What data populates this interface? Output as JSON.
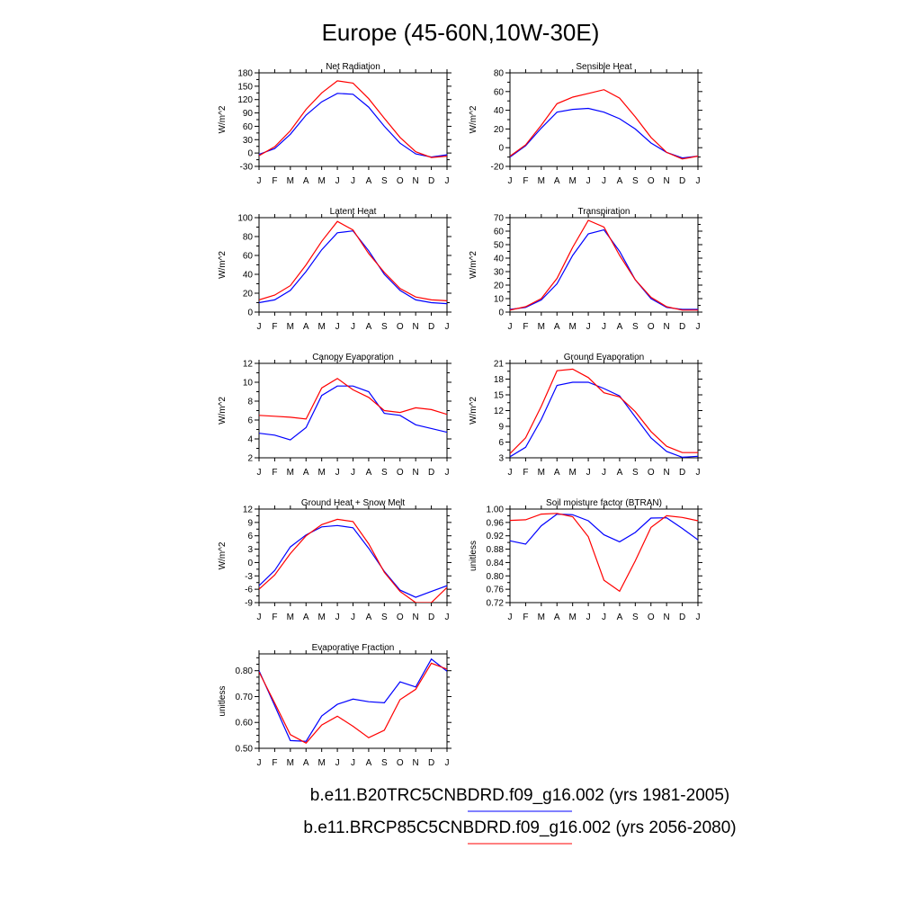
{
  "title": "Europe (45-60N,10W-30E)",
  "series_colors": [
    "#0000ff",
    "#ff0000"
  ],
  "legend": [
    {
      "label": "b.e11.B20TRC5CNBDRD.f09_g16.002 (yrs 1981-2005)",
      "color": "#0000ff"
    },
    {
      "label": "b.e11.BRCP85C5CNBDRD.f09_g16.002 (yrs 2056-2080)",
      "color": "#ff0000"
    }
  ],
  "chart_data": [
    {
      "type": "line",
      "title": "Net Radiation",
      "ylabel": "W/m^2",
      "categories": [
        "J",
        "F",
        "M",
        "A",
        "M",
        "J",
        "J",
        "A",
        "S",
        "O",
        "N",
        "D",
        "J"
      ],
      "ylim": [
        -30,
        180
      ],
      "yticks": [
        -30,
        -15,
        0,
        15,
        30,
        45,
        60,
        75,
        90,
        105,
        120,
        135,
        150,
        165,
        180
      ],
      "yticklabels": [
        "-30",
        "",
        "0",
        "",
        "30",
        "",
        "60",
        "",
        "90",
        "",
        "120",
        "",
        "150",
        "",
        "180"
      ],
      "series": [
        {
          "values": [
            -3,
            10,
            42,
            85,
            115,
            134,
            132,
            103,
            60,
            22,
            -2,
            -9,
            -4
          ]
        },
        {
          "values": [
            -6,
            14,
            50,
            98,
            135,
            162,
            157,
            122,
            78,
            35,
            3,
            -10,
            -7
          ]
        }
      ]
    },
    {
      "type": "line",
      "title": "Sensible Heat",
      "ylabel": "W/m^2",
      "categories": [
        "J",
        "F",
        "M",
        "A",
        "M",
        "J",
        "J",
        "A",
        "S",
        "O",
        "N",
        "D",
        "J"
      ],
      "ylim": [
        -20,
        80
      ],
      "yticks": [
        -20,
        -10,
        0,
        10,
        20,
        30,
        40,
        50,
        60,
        70,
        80
      ],
      "yticklabels": [
        "-20",
        "",
        "0",
        "",
        "20",
        "",
        "40",
        "",
        "60",
        "",
        "80"
      ],
      "series": [
        {
          "values": [
            -10,
            2,
            21,
            38,
            41,
            42,
            38,
            31,
            20,
            5,
            -5,
            -11,
            -9
          ]
        },
        {
          "values": [
            -9,
            3,
            24,
            47,
            54,
            58,
            62,
            53,
            33,
            11,
            -5,
            -12,
            -9
          ]
        }
      ]
    },
    {
      "type": "line",
      "title": "Latent Heat",
      "ylabel": "W/m^2",
      "categories": [
        "J",
        "F",
        "M",
        "A",
        "M",
        "J",
        "J",
        "A",
        "S",
        "O",
        "N",
        "D",
        "J"
      ],
      "ylim": [
        0,
        100
      ],
      "yticks": [
        0,
        10,
        20,
        30,
        40,
        50,
        60,
        70,
        80,
        90,
        100
      ],
      "yticklabels": [
        "0",
        "",
        "20",
        "",
        "40",
        "",
        "60",
        "",
        "80",
        "",
        "100"
      ],
      "series": [
        {
          "values": [
            10,
            13,
            23,
            43,
            66,
            84,
            86,
            65,
            40,
            23,
            13,
            10,
            9
          ]
        },
        {
          "values": [
            13,
            18,
            28,
            50,
            75,
            96,
            87,
            62,
            42,
            25,
            16,
            13,
            12
          ]
        }
      ]
    },
    {
      "type": "line",
      "title": "Transpiration",
      "ylabel": "W/m^2",
      "categories": [
        "J",
        "F",
        "M",
        "A",
        "M",
        "J",
        "J",
        "A",
        "S",
        "O",
        "N",
        "D",
        "J"
      ],
      "ylim": [
        0,
        70
      ],
      "yticks": [
        0,
        5,
        10,
        15,
        20,
        25,
        30,
        35,
        40,
        45,
        50,
        55,
        60,
        65,
        70
      ],
      "yticklabels": [
        "0",
        "",
        "10",
        "",
        "20",
        "",
        "30",
        "",
        "40",
        "",
        "50",
        "",
        "60",
        "",
        "70"
      ],
      "series": [
        {
          "values": [
            2,
            3.5,
            9,
            21,
            42,
            58,
            61,
            45,
            24,
            10,
            3.5,
            2,
            2
          ]
        },
        {
          "values": [
            1.5,
            4,
            10,
            25,
            48,
            68,
            63,
            42,
            24,
            11,
            4,
            1.5,
            1.5
          ]
        }
      ]
    },
    {
      "type": "line",
      "title": "Canopy Evaporation",
      "ylabel": "W/m^2",
      "categories": [
        "J",
        "F",
        "M",
        "A",
        "M",
        "J",
        "J",
        "A",
        "S",
        "O",
        "N",
        "D",
        "J"
      ],
      "ylim": [
        2,
        12
      ],
      "yticks": [
        2,
        3,
        4,
        5,
        6,
        7,
        8,
        9,
        10,
        11,
        12
      ],
      "yticklabels": [
        "2",
        "",
        "4",
        "",
        "6",
        "",
        "8",
        "",
        "10",
        "",
        "12"
      ],
      "series": [
        {
          "values": [
            4.6,
            4.4,
            3.9,
            5.2,
            8.6,
            9.6,
            9.6,
            9.0,
            6.7,
            6.5,
            5.5,
            5.1,
            4.7
          ]
        },
        {
          "values": [
            6.5,
            6.4,
            6.3,
            6.1,
            9.4,
            10.4,
            9.2,
            8.4,
            7.0,
            6.8,
            7.3,
            7.1,
            6.6
          ]
        }
      ]
    },
    {
      "type": "line",
      "title": "Ground Evaporation",
      "ylabel": "W/m^2",
      "categories": [
        "J",
        "F",
        "M",
        "A",
        "M",
        "J",
        "J",
        "A",
        "S",
        "O",
        "N",
        "D",
        "J"
      ],
      "ylim": [
        3,
        21
      ],
      "yticks": [
        3,
        4.5,
        6,
        7.5,
        9,
        10.5,
        12,
        13.5,
        15,
        16.5,
        18,
        19.5,
        21
      ],
      "yticklabels": [
        "3",
        "",
        "6",
        "",
        "9",
        "",
        "12",
        "",
        "15",
        "",
        "18",
        "",
        "21"
      ],
      "series": [
        {
          "values": [
            3.2,
            5.0,
            10.3,
            16.8,
            17.4,
            17.4,
            16.2,
            14.8,
            10.8,
            6.8,
            4.2,
            3.1,
            3.3
          ]
        },
        {
          "values": [
            3.8,
            6.8,
            12.8,
            19.6,
            19.9,
            18.3,
            15.4,
            14.6,
            11.8,
            8.0,
            5.2,
            4.0,
            4.0
          ]
        }
      ]
    },
    {
      "type": "line",
      "title": "Ground Heat + Snow Melt",
      "ylabel": "W/m^2",
      "categories": [
        "J",
        "F",
        "M",
        "A",
        "M",
        "J",
        "J",
        "A",
        "S",
        "O",
        "N",
        "D",
        "J"
      ],
      "ylim": [
        -9,
        12
      ],
      "yticks": [
        -9,
        -7.5,
        -6,
        -4.5,
        -3,
        -1.5,
        0,
        1.5,
        3,
        4.5,
        6,
        7.5,
        9,
        10.5,
        12
      ],
      "yticklabels": [
        "-9",
        "",
        "-6",
        "",
        "-3",
        "",
        "0",
        "",
        "3",
        "",
        "6",
        "",
        "9",
        "",
        "12"
      ],
      "series": [
        {
          "values": [
            -5.2,
            -1.8,
            3.5,
            6.2,
            8.0,
            8.3,
            7.8,
            3.2,
            -2.0,
            -6.2,
            -7.8,
            -6.5,
            -5.2
          ]
        },
        {
          "values": [
            -6.0,
            -2.8,
            2.0,
            6.0,
            8.5,
            9.7,
            9.2,
            4.2,
            -2.2,
            -6.5,
            -9.0,
            -9.0,
            -5.6
          ]
        }
      ]
    },
    {
      "type": "line",
      "title": "Soil moisture factor (BTRAN)",
      "ylabel": "unitless",
      "categories": [
        "J",
        "F",
        "M",
        "A",
        "M",
        "J",
        "J",
        "A",
        "S",
        "O",
        "N",
        "D",
        "J"
      ],
      "ylim": [
        0.72,
        1.0
      ],
      "yticks": [
        0.72,
        0.74,
        0.76,
        0.78,
        0.8,
        0.82,
        0.84,
        0.86,
        0.88,
        0.9,
        0.92,
        0.94,
        0.96,
        0.98,
        1.0
      ],
      "yticklabels": [
        "0.72",
        "",
        "0.76",
        "",
        "0.80",
        "",
        "0.84",
        "",
        "0.88",
        "",
        "0.92",
        "",
        "0.96",
        "",
        "1.00"
      ],
      "series": [
        {
          "values": [
            0.905,
            0.895,
            0.95,
            0.985,
            0.983,
            0.965,
            0.923,
            0.902,
            0.93,
            0.973,
            0.974,
            0.942,
            0.908
          ]
        },
        {
          "values": [
            0.966,
            0.968,
            0.985,
            0.987,
            0.977,
            0.917,
            0.787,
            0.754,
            0.845,
            0.945,
            0.98,
            0.975,
            0.965
          ]
        }
      ]
    },
    {
      "type": "line",
      "title": "Evaporative Fraction",
      "ylabel": "unitless",
      "categories": [
        "J",
        "F",
        "M",
        "A",
        "M",
        "J",
        "J",
        "A",
        "S",
        "O",
        "N",
        "D",
        "J"
      ],
      "ylim": [
        0.5,
        0.865
      ],
      "yticks": [
        0.5,
        0.525,
        0.55,
        0.575,
        0.6,
        0.625,
        0.65,
        0.675,
        0.7,
        0.725,
        0.75,
        0.775,
        0.8,
        0.825,
        0.85
      ],
      "yticklabels": [
        "0.50",
        "",
        "",
        "",
        "0.60",
        "",
        "",
        "",
        "0.70",
        "",
        "",
        "",
        "0.80",
        "",
        ""
      ],
      "series": [
        {
          "values": [
            0.8,
            0.665,
            0.53,
            0.527,
            0.625,
            0.67,
            0.69,
            0.68,
            0.676,
            0.757,
            0.737,
            0.845,
            0.798
          ]
        },
        {
          "values": [
            0.795,
            0.675,
            0.553,
            0.52,
            0.59,
            0.624,
            0.585,
            0.541,
            0.57,
            0.688,
            0.728,
            0.829,
            0.806
          ]
        }
      ]
    }
  ]
}
